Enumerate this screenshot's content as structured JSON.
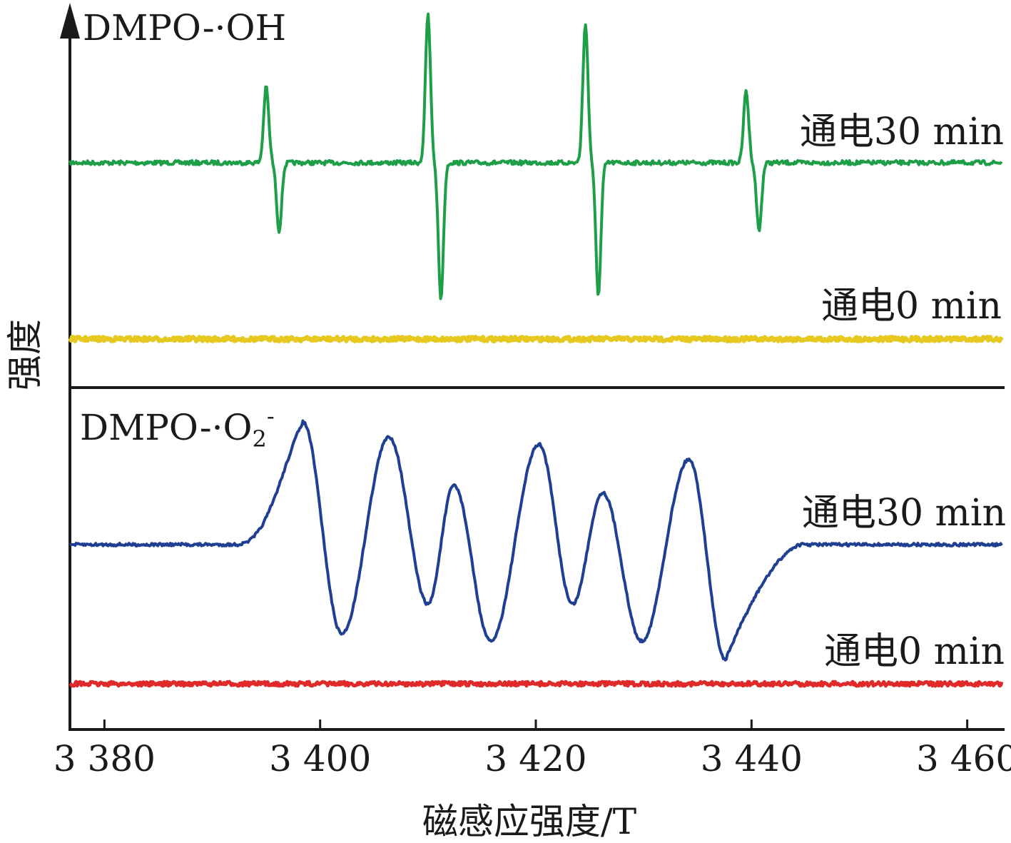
{
  "chart_data": {
    "type": "line",
    "xlabel": "磁感应强度/T",
    "ylabel": "强度",
    "x_ticks": [
      {
        "value": 3380,
        "label": "3 380"
      },
      {
        "value": 3400,
        "label": "3 400"
      },
      {
        "value": 3420,
        "label": "3 420"
      },
      {
        "value": 3440,
        "label": "3 440"
      },
      {
        "value": 3460,
        "label": "3 460"
      }
    ],
    "xlim": [
      3376.8,
      3463.2
    ],
    "y_ticks": "none",
    "panels": [
      {
        "title": "DMPO-·OH",
        "traces": [
          {
            "label": "通电30 min",
            "color": "#1e9e46",
            "shape": "four_line_derivative",
            "peaks": [
              {
                "x_max": 3395.0,
                "x_min": 3396.2,
                "amp_up": 0.19,
                "amp_down": 0.17
              },
              {
                "x_max": 3410.0,
                "x_min": 3411.2,
                "amp_up": 0.37,
                "amp_down": 0.34
              },
              {
                "x_max": 3424.6,
                "x_min": 3425.8,
                "amp_up": 0.35,
                "amp_down": 0.33
              },
              {
                "x_max": 3439.5,
                "x_min": 3440.7,
                "amp_up": 0.18,
                "amp_down": 0.17
              }
            ]
          },
          {
            "label": "通电0 min",
            "color": "#e6c81e",
            "shape": "flat_noise"
          }
        ]
      },
      {
        "title": "DMPO-·O",
        "title_subscript": "2",
        "title_superscript": "-",
        "traces": [
          {
            "label": "通电30 min",
            "color": "#1f3f92",
            "shape": "broad_multiline",
            "extrema": [
              {
                "x": 3398.4,
                "y": 0.33
              },
              {
                "x": 3402.0,
                "y": -0.24
              },
              {
                "x": 3406.4,
                "y": 0.29
              },
              {
                "x": 3410.0,
                "y": -0.16
              },
              {
                "x": 3412.4,
                "y": 0.16
              },
              {
                "x": 3415.8,
                "y": -0.26
              },
              {
                "x": 3420.3,
                "y": 0.27
              },
              {
                "x": 3423.4,
                "y": -0.16
              },
              {
                "x": 3426.2,
                "y": 0.14
              },
              {
                "x": 3429.8,
                "y": -0.26
              },
              {
                "x": 3434.2,
                "y": 0.23
              },
              {
                "x": 3437.6,
                "y": -0.31
              }
            ]
          },
          {
            "label": "通电0 min",
            "color": "#e02a2a",
            "shape": "flat_noise"
          }
        ]
      }
    ]
  }
}
